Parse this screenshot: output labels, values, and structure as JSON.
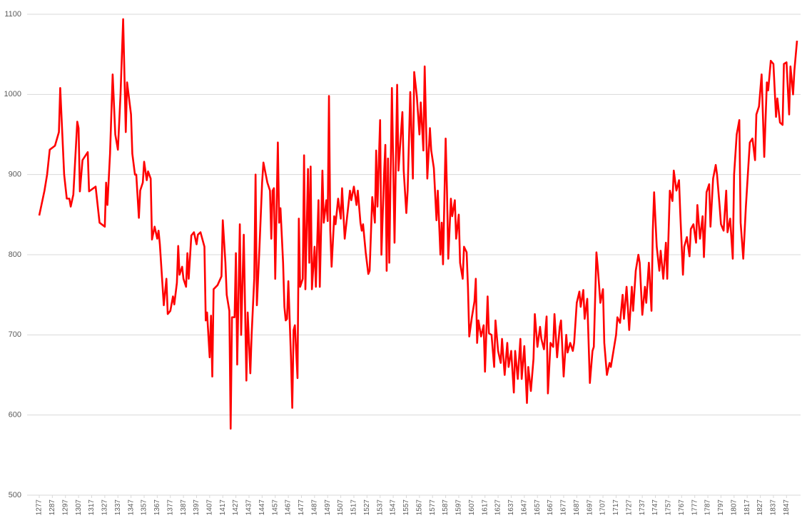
{
  "chart_data": {
    "type": "line",
    "color": "#ff0000",
    "grid": true,
    "xlim": [
      1277,
      1855
    ],
    "ylim": [
      500,
      1100
    ],
    "yticks": [
      500,
      600,
      700,
      800,
      900,
      1000,
      1100
    ],
    "xticks": [
      1277,
      1287,
      1297,
      1307,
      1317,
      1327,
      1337,
      1347,
      1357,
      1367,
      1377,
      1387,
      1397,
      1407,
      1417,
      1427,
      1437,
      1447,
      1457,
      1467,
      1477,
      1487,
      1497,
      1507,
      1517,
      1527,
      1537,
      1547,
      1557,
      1567,
      1577,
      1587,
      1597,
      1607,
      1617,
      1627,
      1637,
      1647,
      1657,
      1667,
      1677,
      1687,
      1697,
      1707,
      1717,
      1727,
      1737,
      1747,
      1757,
      1767,
      1777,
      1787,
      1797,
      1807,
      1817,
      1827,
      1837,
      1847
    ],
    "x": [
      1277,
      1281,
      1283,
      1285,
      1289,
      1292,
      1293,
      1296,
      1298,
      1300,
      1301,
      1303,
      1306,
      1307,
      1308,
      1310,
      1314,
      1315,
      1320,
      1323,
      1327,
      1328,
      1329,
      1331,
      1333,
      1335,
      1337,
      1339,
      1341,
      1343,
      1344,
      1347,
      1348,
      1350,
      1351,
      1353,
      1354,
      1356,
      1357,
      1359,
      1360,
      1362,
      1363,
      1365,
      1367,
      1368,
      1369,
      1372,
      1374,
      1375,
      1377,
      1379,
      1380,
      1382,
      1383,
      1384,
      1386,
      1387,
      1389,
      1390,
      1391,
      1393,
      1395,
      1397,
      1398,
      1400,
      1403,
      1404,
      1405,
      1407,
      1408,
      1409,
      1410,
      1413,
      1416,
      1417,
      1419,
      1420,
      1422,
      1423,
      1424,
      1426,
      1427,
      1428,
      1430,
      1431,
      1433,
      1435,
      1436,
      1438,
      1439,
      1441,
      1442,
      1443,
      1445,
      1447,
      1448,
      1451,
      1453,
      1454,
      1455,
      1456,
      1457,
      1459,
      1460,
      1461,
      1463,
      1464,
      1465,
      1466,
      1467,
      1469,
      1470,
      1471,
      1472,
      1474,
      1475,
      1476,
      1478,
      1479,
      1480,
      1482,
      1483,
      1484,
      1485,
      1487,
      1488,
      1490,
      1491,
      1493,
      1494,
      1496,
      1497,
      1498,
      1499,
      1500,
      1502,
      1503,
      1505,
      1507,
      1508,
      1510,
      1512,
      1514,
      1515,
      1517,
      1519,
      1520,
      1522,
      1523,
      1524,
      1526,
      1528,
      1529,
      1531,
      1533,
      1534,
      1535,
      1537,
      1538,
      1540,
      1541,
      1542,
      1543,
      1544,
      1546,
      1548,
      1550,
      1551,
      1554,
      1555,
      1557,
      1558,
      1560,
      1562,
      1563,
      1565,
      1567,
      1568,
      1570,
      1571,
      1573,
      1575,
      1576,
      1578,
      1580,
      1581,
      1583,
      1584,
      1585,
      1587,
      1588,
      1589,
      1591,
      1592,
      1594,
      1595,
      1597,
      1598,
      1600,
      1601,
      1603,
      1604,
      1605,
      1607,
      1609,
      1610,
      1611,
      1612,
      1614,
      1616,
      1617,
      1619,
      1620,
      1622,
      1624,
      1625,
      1627,
      1629,
      1630,
      1632,
      1634,
      1635,
      1637,
      1639,
      1640,
      1642,
      1644,
      1645,
      1647,
      1649,
      1650,
      1652,
      1654,
      1655,
      1657,
      1659,
      1660,
      1662,
      1664,
      1665,
      1667,
      1669,
      1670,
      1672,
      1674,
      1675,
      1677,
      1679,
      1680,
      1682,
      1684,
      1685,
      1687,
      1689,
      1690,
      1692,
      1693,
      1695,
      1697,
      1699,
      1700,
      1702,
      1703,
      1705,
      1707,
      1708,
      1710,
      1712,
      1713,
      1715,
      1717,
      1718,
      1720,
      1722,
      1723,
      1725,
      1727,
      1729,
      1730,
      1732,
      1734,
      1735,
      1737,
      1739,
      1740,
      1742,
      1744,
      1745,
      1746,
      1748,
      1750,
      1751,
      1753,
      1755,
      1756,
      1758,
      1760,
      1761,
      1763,
      1765,
      1766,
      1768,
      1769,
      1771,
      1773,
      1774,
      1776,
      1778,
      1779,
      1781,
      1783,
      1784,
      1786,
      1788,
      1789,
      1791,
      1793,
      1794,
      1796,
      1797,
      1799,
      1801,
      1802,
      1804,
      1806,
      1807,
      1809,
      1811,
      1812,
      1814,
      1816,
      1819,
      1821,
      1823,
      1824,
      1826,
      1828,
      1830,
      1832,
      1833,
      1835,
      1837,
      1839,
      1840,
      1842,
      1844,
      1845,
      1847,
      1849,
      1850,
      1852,
      1853,
      1855
    ],
    "values": [
      849,
      880,
      900,
      931,
      936,
      953,
      1008,
      900,
      870,
      870,
      860,
      875,
      966,
      958,
      879,
      918,
      928,
      879,
      885,
      840,
      835,
      890,
      862,
      926,
      1025,
      950,
      931,
      1000,
      1094,
      953,
      1015,
      975,
      926,
      900,
      900,
      846,
      880,
      890,
      916,
      893,
      904,
      895,
      819,
      835,
      820,
      830,
      813,
      737,
      770,
      726,
      730,
      748,
      738,
      765,
      811,
      775,
      785,
      770,
      760,
      802,
      770,
      824,
      828,
      813,
      825,
      828,
      810,
      718,
      728,
      672,
      724,
      648,
      757,
      762,
      773,
      843,
      790,
      750,
      730,
      583,
      722,
      722,
      802,
      663,
      838,
      700,
      825,
      643,
      728,
      652,
      700,
      770,
      900,
      737,
      810,
      890,
      915,
      890,
      880,
      820,
      880,
      883,
      770,
      940,
      840,
      858,
      790,
      735,
      718,
      720,
      767,
      672,
      609,
      706,
      712,
      646,
      845,
      760,
      770,
      924,
      757,
      907,
      790,
      910,
      757,
      810,
      760,
      868,
      760,
      905,
      840,
      868,
      842,
      998,
      830,
      785,
      848,
      838,
      870,
      845,
      883,
      820,
      850,
      880,
      868,
      885,
      862,
      880,
      840,
      830,
      838,
      803,
      776,
      780,
      872,
      840,
      930,
      860,
      968,
      800,
      900,
      937,
      780,
      920,
      790,
      1008,
      815,
      1012,
      905,
      978,
      905,
      852,
      880,
      1003,
      895,
      1028,
      998,
      950,
      990,
      930,
      1035,
      895,
      958,
      930,
      908,
      843,
      880,
      800,
      840,
      788,
      945,
      880,
      795,
      870,
      848,
      868,
      820,
      850,
      790,
      770,
      810,
      803,
      760,
      698,
      722,
      742,
      770,
      690,
      718,
      698,
      712,
      654,
      748,
      702,
      700,
      660,
      718,
      680,
      665,
      695,
      650,
      690,
      660,
      680,
      628,
      680,
      645,
      695,
      645,
      686,
      615,
      660,
      630,
      670,
      726,
      685,
      710,
      695,
      682,
      723,
      627,
      690,
      685,
      726,
      672,
      710,
      718,
      648,
      700,
      678,
      690,
      680,
      690,
      740,
      754,
      735,
      756,
      720,
      745,
      640,
      680,
      685,
      803,
      785,
      740,
      757,
      690,
      650,
      665,
      660,
      680,
      700,
      722,
      715,
      750,
      720,
      760,
      706,
      760,
      730,
      780,
      800,
      790,
      725,
      760,
      740,
      790,
      730,
      830,
      878,
      810,
      780,
      805,
      770,
      815,
      770,
      880,
      867,
      905,
      880,
      893,
      850,
      775,
      810,
      822,
      798,
      832,
      838,
      815,
      862,
      820,
      848,
      797,
      878,
      888,
      835,
      895,
      912,
      900,
      860,
      838,
      830,
      880,
      828,
      845,
      795,
      900,
      950,
      968,
      840,
      795,
      860,
      940,
      945,
      918,
      975,
      985,
      1025,
      922,
      1015,
      1005,
      1042,
      1038,
      972,
      995,
      965,
      962,
      1038,
      1040,
      975,
      1035,
      1000,
      1030,
      1067
    ]
  }
}
